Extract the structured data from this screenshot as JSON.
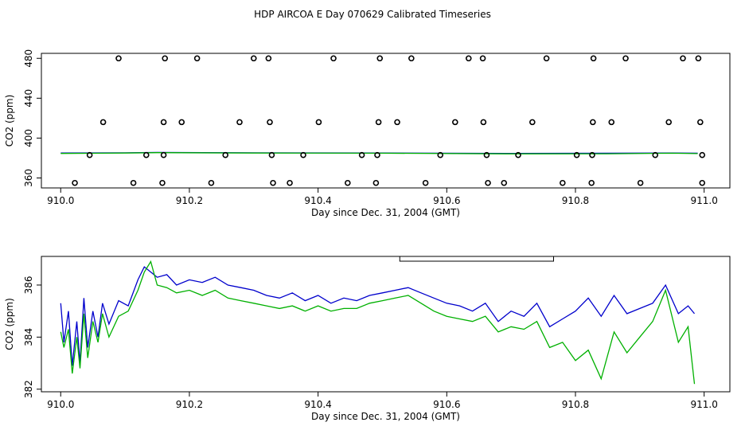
{
  "title": "HDP AIRCOA E  Day 070629  Calibrated Timeseries",
  "colors": {
    "series_a": "#0000cc",
    "series_b": "#00b000",
    "marker": "#000000"
  },
  "chart_data": [
    {
      "type": "scatter",
      "xlabel": "Day since Dec. 31, 2004 (GMT)",
      "ylabel": "CO2 (ppm)",
      "xlim": [
        909.97,
        911.04
      ],
      "ylim": [
        350,
        485
      ],
      "x_ticks": [
        910.0,
        910.2,
        910.4,
        910.6,
        910.8,
        911.0
      ],
      "x_tick_labels": [
        "910.0",
        "910.2",
        "910.4",
        "910.6",
        "910.8",
        "911.0"
      ],
      "y_ticks": [
        360,
        400,
        440,
        480
      ],
      "y_tick_labels": [
        "360",
        "400",
        "440",
        "480"
      ],
      "markers": {
        "y480": [
          910.09,
          910.162,
          910.212,
          910.3,
          910.323,
          910.424,
          910.496,
          910.545,
          910.634,
          910.656,
          910.755,
          910.828,
          910.878,
          910.967,
          910.991
        ],
        "y416": [
          910.066,
          910.16,
          910.188,
          910.278,
          910.325,
          910.401,
          910.494,
          910.523,
          910.613,
          910.657,
          910.733,
          910.827,
          910.856,
          910.945,
          910.994
        ],
        "y383": [
          910.045,
          910.133,
          910.16,
          910.256,
          910.328,
          910.377,
          910.468,
          910.492,
          910.59,
          910.662,
          910.711,
          910.802,
          910.826,
          910.924,
          910.997
        ],
        "y355": [
          910.022,
          910.113,
          910.158,
          910.234,
          910.33,
          910.356,
          910.446,
          910.49,
          910.567,
          910.664,
          910.689,
          910.78,
          910.825,
          910.901,
          910.997
        ]
      },
      "series": [
        {
          "x": [
            910.0,
            910.1,
            910.15,
            910.3,
            910.5,
            910.7,
            910.85,
            910.95,
            910.99
          ],
          "values": [
            385.0,
            385.2,
            385.6,
            385.2,
            385.0,
            384.6,
            384.8,
            385.0,
            384.8
          ]
        },
        {
          "x": [
            910.0,
            910.1,
            910.15,
            910.3,
            910.5,
            910.7,
            910.85,
            910.95,
            910.99
          ],
          "values": [
            384.6,
            385.0,
            385.4,
            385.0,
            384.8,
            384.2,
            384.3,
            384.8,
            384.4
          ]
        }
      ]
    },
    {
      "type": "line",
      "xlabel": "Day since Dec. 31, 2004 (GMT)",
      "ylabel": "CO2 (ppm)",
      "xlim": [
        909.97,
        911.04
      ],
      "ylim": [
        381.9,
        387.1
      ],
      "x_ticks": [
        910.0,
        910.2,
        910.4,
        910.6,
        910.8,
        911.0
      ],
      "x_tick_labels": [
        "910.0",
        "910.2",
        "910.4",
        "910.6",
        "910.8",
        "911.0"
      ],
      "y_ticks": [
        382,
        384,
        386
      ],
      "y_tick_labels": [
        "382",
        "384",
        "386"
      ],
      "bracket": {
        "x_start": 910.527,
        "x_end": 910.766
      },
      "series": [
        {
          "x": [
            910.0,
            910.005,
            910.012,
            910.018,
            910.025,
            910.03,
            910.036,
            910.042,
            910.05,
            910.058,
            910.065,
            910.075,
            910.09,
            910.105,
            910.12,
            910.13,
            910.14,
            910.15,
            910.165,
            910.18,
            910.2,
            910.22,
            910.24,
            910.26,
            910.28,
            910.3,
            910.32,
            910.34,
            910.36,
            910.38,
            910.4,
            910.42,
            910.44,
            910.46,
            910.48,
            910.5,
            910.52,
            910.54,
            910.56,
            910.58,
            910.6,
            910.62,
            910.64,
            910.66,
            910.68,
            910.7,
            910.72,
            910.74,
            910.76,
            910.78,
            910.8,
            910.82,
            910.84,
            910.86,
            910.88,
            910.9,
            910.92,
            910.94,
            910.96,
            910.975,
            910.985
          ],
          "values": [
            385.3,
            383.8,
            385.0,
            382.9,
            384.6,
            383.0,
            385.5,
            383.6,
            385.0,
            384.0,
            385.3,
            384.5,
            385.4,
            385.2,
            386.2,
            386.7,
            386.5,
            386.3,
            386.4,
            386.0,
            386.2,
            386.1,
            386.3,
            386.0,
            385.9,
            385.8,
            385.6,
            385.5,
            385.7,
            385.4,
            385.6,
            385.3,
            385.5,
            385.4,
            385.6,
            385.7,
            385.8,
            385.9,
            385.7,
            385.5,
            385.3,
            385.2,
            385.0,
            385.3,
            384.6,
            385.0,
            384.8,
            385.3,
            384.4,
            384.7,
            385.0,
            385.5,
            384.8,
            385.6,
            384.9,
            385.1,
            385.3,
            386.0,
            384.9,
            385.2,
            384.9
          ]
        },
        {
          "x": [
            910.0,
            910.005,
            910.012,
            910.018,
            910.025,
            910.03,
            910.036,
            910.042,
            910.05,
            910.058,
            910.065,
            910.075,
            910.09,
            910.105,
            910.12,
            910.13,
            910.14,
            910.15,
            910.165,
            910.18,
            910.2,
            910.22,
            910.24,
            910.26,
            910.28,
            910.3,
            910.32,
            910.34,
            910.36,
            910.38,
            910.4,
            910.42,
            910.44,
            910.46,
            910.48,
            910.5,
            910.52,
            910.54,
            910.56,
            910.58,
            910.6,
            910.62,
            910.64,
            910.66,
            910.68,
            910.7,
            910.72,
            910.74,
            910.76,
            910.78,
            910.8,
            910.82,
            910.84,
            910.86,
            910.88,
            910.9,
            910.92,
            910.94,
            910.96,
            910.975,
            910.985
          ],
          "values": [
            384.2,
            383.6,
            384.3,
            382.6,
            384.0,
            382.8,
            384.9,
            383.2,
            384.6,
            383.8,
            384.9,
            384.0,
            384.8,
            385.0,
            385.8,
            386.5,
            386.9,
            386.0,
            385.9,
            385.7,
            385.8,
            385.6,
            385.8,
            385.5,
            385.4,
            385.3,
            385.2,
            385.1,
            385.2,
            385.0,
            385.2,
            385.0,
            385.1,
            385.1,
            385.3,
            385.4,
            385.5,
            385.6,
            385.3,
            385.0,
            384.8,
            384.7,
            384.6,
            384.8,
            384.2,
            384.4,
            384.3,
            384.6,
            383.6,
            383.8,
            383.1,
            383.5,
            382.4,
            384.2,
            383.4,
            384.0,
            384.6,
            385.8,
            383.8,
            384.4,
            382.2
          ]
        }
      ]
    }
  ]
}
